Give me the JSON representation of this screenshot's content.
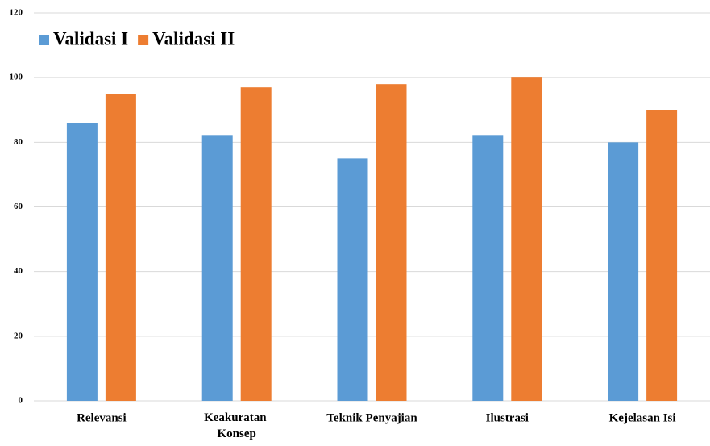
{
  "chart_data": {
    "type": "bar",
    "categories": [
      "Relevansi",
      "Keakuratan Konsep",
      "Teknik Penyajian",
      "Ilustrasi",
      "Kejelasan Isi"
    ],
    "series": [
      {
        "name": "Validasi I",
        "color": "#5b9bd5",
        "values": [
          86,
          82,
          75,
          82,
          80
        ]
      },
      {
        "name": "Validasi II",
        "color": "#ed7d31",
        "values": [
          95,
          97,
          98,
          100,
          90
        ]
      }
    ],
    "ylim": [
      0,
      120
    ],
    "yticks": [
      0,
      20,
      40,
      60,
      80,
      100,
      120
    ],
    "grid": true,
    "legend": "top-left"
  }
}
